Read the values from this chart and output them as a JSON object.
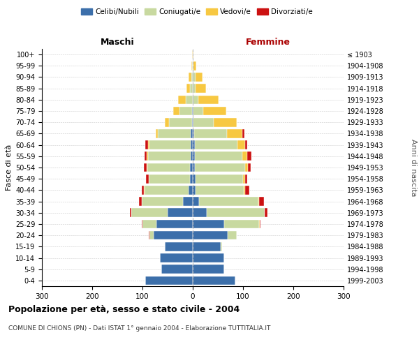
{
  "age_groups": [
    "0-4",
    "5-9",
    "10-14",
    "15-19",
    "20-24",
    "25-29",
    "30-34",
    "35-39",
    "40-44",
    "45-49",
    "50-54",
    "55-59",
    "60-64",
    "65-69",
    "70-74",
    "75-79",
    "80-84",
    "85-89",
    "90-94",
    "95-99",
    "100+"
  ],
  "birth_years": [
    "1999-2003",
    "1994-1998",
    "1989-1993",
    "1984-1988",
    "1979-1983",
    "1974-1978",
    "1969-1973",
    "1964-1968",
    "1959-1963",
    "1954-1958",
    "1949-1953",
    "1944-1948",
    "1939-1943",
    "1934-1938",
    "1929-1933",
    "1924-1928",
    "1919-1923",
    "1914-1918",
    "1909-1913",
    "1904-1908",
    "≤ 1903"
  ],
  "colors": {
    "celibe": "#3c6faa",
    "coniugato": "#c8d9a0",
    "vedovo": "#f7c842",
    "divorziato": "#cc1111"
  },
  "males": {
    "celibe": [
      95,
      62,
      65,
      55,
      78,
      72,
      50,
      20,
      8,
      5,
      5,
      4,
      4,
      4,
      2,
      2,
      0,
      0,
      0,
      0,
      0
    ],
    "coniugato": [
      0,
      0,
      0,
      0,
      8,
      28,
      72,
      82,
      88,
      82,
      85,
      85,
      82,
      65,
      45,
      25,
      14,
      5,
      3,
      1,
      0
    ],
    "vedovo": [
      0,
      0,
      0,
      0,
      0,
      0,
      0,
      0,
      1,
      1,
      2,
      2,
      3,
      5,
      8,
      12,
      15,
      8,
      5,
      2,
      1
    ],
    "divorziato": [
      0,
      0,
      0,
      0,
      1,
      2,
      3,
      5,
      5,
      5,
      5,
      5,
      5,
      0,
      0,
      0,
      0,
      0,
      0,
      0,
      0
    ]
  },
  "females": {
    "nubile": [
      85,
      62,
      62,
      55,
      70,
      62,
      28,
      12,
      6,
      5,
      4,
      4,
      4,
      3,
      2,
      1,
      1,
      1,
      1,
      0,
      0
    ],
    "coniugata": [
      0,
      0,
      0,
      4,
      18,
      70,
      115,
      118,
      95,
      95,
      100,
      95,
      85,
      65,
      40,
      20,
      10,
      5,
      4,
      2,
      0
    ],
    "vedova": [
      0,
      0,
      0,
      0,
      0,
      1,
      0,
      2,
      3,
      4,
      6,
      10,
      15,
      30,
      45,
      45,
      40,
      20,
      15,
      5,
      2
    ],
    "divorziata": [
      0,
      0,
      0,
      0,
      0,
      2,
      5,
      10,
      8,
      5,
      5,
      8,
      5,
      5,
      0,
      0,
      0,
      0,
      0,
      0,
      0
    ]
  },
  "title": "Popolazione per età, sesso e stato civile - 2004",
  "subtitle": "COMUNE DI CHIONS (PN) - Dati ISTAT 1° gennaio 2004 - Elaborazione TUTTITALIA.IT",
  "xlabel_left": "Maschi",
  "xlabel_right": "Femmine",
  "ylabel_left": "Fasce di età",
  "ylabel_right": "Anni di nascita",
  "xlim": 300,
  "legend_labels": [
    "Celibi/Nubili",
    "Coniugati/e",
    "Vedovi/e",
    "Divorziati/e"
  ],
  "background_color": "#ffffff",
  "grid_color": "#cccccc",
  "femmine_color": "#aa0000"
}
